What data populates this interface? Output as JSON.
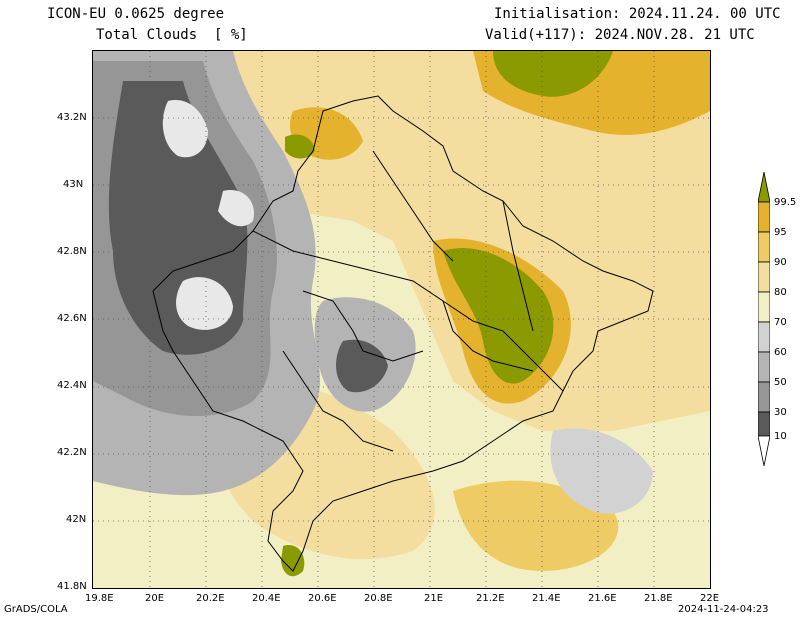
{
  "header": {
    "model": "ICON-EU 0.0625 degree",
    "field": "Total Clouds  [ %]",
    "init": "Initialisation: 2024.11.24. 00 UTC",
    "valid": "Valid(+117): 2024.NOV.28. 21 UTC"
  },
  "map": {
    "lat_labels": [
      "43.2N",
      "43N",
      "42.8N",
      "42.6N",
      "42.4N",
      "42.2N",
      "42N",
      "41.8N"
    ],
    "lon_labels": [
      "19.8E",
      "20E",
      "20.2E",
      "20.4E",
      "20.6E",
      "20.8E",
      "21E",
      "21.2E",
      "21.4E",
      "21.6E",
      "21.8E",
      "22E"
    ]
  },
  "colorbar": {
    "levels": [
      "99.5",
      "95",
      "90",
      "80",
      "70",
      "60",
      "50",
      "30",
      "10"
    ],
    "colors": [
      "#8b9a00",
      "#e5b22d",
      "#efcb66",
      "#f3dea0",
      "#f3efc4",
      "#d2d2d2",
      "#b4b4b4",
      "#969696",
      "#5a5a5a",
      "#ffffff"
    ]
  },
  "footer": {
    "credit": "GrADS/COLA",
    "timestamp": "2024-11-24-04:23"
  }
}
